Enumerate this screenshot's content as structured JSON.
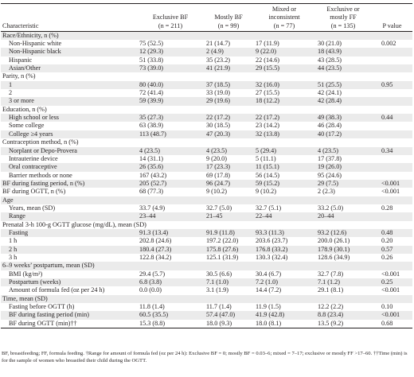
{
  "columns": [
    {
      "label": "Characteristic"
    },
    {
      "label": "Exclusive BF",
      "sub": "(n = 211)"
    },
    {
      "label": "Mostly BF",
      "sub": "(n = 99)"
    },
    {
      "label_l1": "Mixed or",
      "label_l2": "inconsistent",
      "sub": "(n = 77)"
    },
    {
      "label_l1": "Exclusive or",
      "label_l2": "mostly FF",
      "sub": "(n = 135)"
    },
    {
      "label": "P value"
    }
  ],
  "rows": [
    {
      "type": "section",
      "label": "Race/Ethnicity, n (%)"
    },
    {
      "type": "data",
      "label": "Non-Hispanic white",
      "v": [
        "75 (52.5)",
        "21 (14.7)",
        "17 (11.9)",
        "30 (21.0)"
      ],
      "p": "0.002"
    },
    {
      "type": "data",
      "label": "Non-Hispanic black",
      "v": [
        "12 (29.3)",
        "2 (4.9)",
        "9 (22.0)",
        "18 (43.9)"
      ],
      "p": ""
    },
    {
      "type": "data",
      "label": "Hispanic",
      "v": [
        "51 (33.8)",
        "35 (23.2)",
        "22 (14.6)",
        "43 (28.5)"
      ],
      "p": ""
    },
    {
      "type": "data",
      "label": "Asian/Other",
      "v": [
        "73 (39.0)",
        "41 (21.9)",
        "29 (15.5)",
        "44 (23.5)"
      ],
      "p": ""
    },
    {
      "type": "section",
      "label": "Parity, n (%)"
    },
    {
      "type": "data",
      "label": "1",
      "v": [
        "80 (40.0)",
        "37 (18.5)",
        "32 (16.0)",
        "51 (25.5)"
      ],
      "p": "0.95"
    },
    {
      "type": "data",
      "label": "2",
      "v": [
        "72 (41.4)",
        "33 (19.0)",
        "27 (15.5)",
        "42 (24.1)"
      ],
      "p": ""
    },
    {
      "type": "data",
      "label": "3 or more",
      "v": [
        "59 (39.9)",
        "29 (19.6)",
        "18 (12.2)",
        "42 (28.4)"
      ],
      "p": ""
    },
    {
      "type": "section",
      "label": "Education, n (%)"
    },
    {
      "type": "data",
      "label": "High school or less",
      "v": [
        "35 (27.3)",
        "22 (17.2)",
        "22 (17.2)",
        "49 (38.3)"
      ],
      "p": "0.44"
    },
    {
      "type": "data",
      "label": "Some college",
      "v": [
        "63 (38.9)",
        "30 (18.5)",
        "23 (14.2)",
        "46 (28.4)"
      ],
      "p": ""
    },
    {
      "type": "data",
      "label": "College ≥4 years",
      "v": [
        "113 (48.7)",
        "47 (20.3)",
        "32 (13.8)",
        "40 (17.2)"
      ],
      "p": ""
    },
    {
      "type": "section",
      "label": "Contraception method, n (%)"
    },
    {
      "type": "data",
      "label": "Norplant or Depo-Provera",
      "v": [
        "4 (23.5)",
        "4 (23.5)",
        "5 (29.4)",
        "4 (23.5)"
      ],
      "p": "0.34"
    },
    {
      "type": "data",
      "label": "Intrauterine device",
      "v": [
        "14 (31.1)",
        "9 (20.0)",
        "5 (11.1)",
        "17 (37.8)"
      ],
      "p": ""
    },
    {
      "type": "data",
      "label": "Oral contraceptive",
      "v": [
        "26 (35.6)",
        "17 (23.3)",
        "11 (15.1)",
        "19 (26.0)"
      ],
      "p": ""
    },
    {
      "type": "data",
      "label": "Barrier methods or none",
      "v": [
        "167 (43.2)",
        "69 (17.8)",
        "56 (14.5)",
        "95 (24.6)"
      ],
      "p": ""
    },
    {
      "type": "top",
      "label": "BF during fasting period, n (%)",
      "v": [
        "205 (52.7)",
        "96 (24.7)",
        "59 (15.2)",
        "29 (7.5)"
      ],
      "p": "<0.001"
    },
    {
      "type": "top",
      "label": "BF during OGTT, n (%)",
      "v": [
        "68 (77.3)",
        "9 (10.2)",
        "9 (10.2)",
        "2 (2.3)"
      ],
      "p": "<0.001"
    },
    {
      "type": "section",
      "label": "Age"
    },
    {
      "type": "data",
      "label": "Years, mean (SD)",
      "v": [
        "33.7 (4.9)",
        "32.7 (5.0)",
        "32.7 (5.1)",
        "33.2 (5.0)"
      ],
      "p": "0.28"
    },
    {
      "type": "data",
      "label": "Range",
      "v": [
        "23–44",
        "21–45",
        "22–44",
        "20–44"
      ],
      "p": ""
    },
    {
      "type": "section",
      "label": "Prenatal 3-h 100-g OGTT glucose (mg/dL), mean (SD)"
    },
    {
      "type": "data",
      "label": "Fasting",
      "v": [
        "91.3 (13.4)",
        "91.9 (11.8)",
        "93.3 (11.3)",
        "93.2 (12.6)"
      ],
      "p": "0.48"
    },
    {
      "type": "data",
      "label": "1 h",
      "v": [
        "202.8 (24.6)",
        "197.2 (22.0)",
        "203.6 (23.7)",
        "200.0 (26.1)"
      ],
      "p": "0.20"
    },
    {
      "type": "data",
      "label": "2 h",
      "v": [
        "180.4 (27.3)",
        "175.8 (27.6)",
        "176.8 (33.2)",
        "178.9 (30.1)"
      ],
      "p": "0.57"
    },
    {
      "type": "data",
      "label": "3 h",
      "v": [
        "122.8 (34.2)",
        "125.1 (31.9)",
        "130.3 (32.4)",
        "128.6 (34.9)"
      ],
      "p": "0.26"
    },
    {
      "type": "section",
      "label": "6–9 weeks’ postpartum, mean (SD)"
    },
    {
      "type": "data",
      "label": "BMI (kg/m²)",
      "v": [
        "29.4 (5.7)",
        "30.5 (6.6)",
        "30.4 (6.7)",
        "32.7 (7.8)"
      ],
      "p": "<0.001"
    },
    {
      "type": "data",
      "label": "Postpartum (weeks)",
      "v": [
        "6.8 (3.8)",
        "7.1 (1.0)",
        "7.2 (1.0)",
        "7.1 (1.2)"
      ],
      "p": "0.25"
    },
    {
      "type": "data",
      "label": "Amount of formula fed (oz per 24 h)",
      "v": [
        "0.0 (0.0)",
        "3.1 (1.9)",
        "14.4 (7.2)",
        "29.1 (8.1)"
      ],
      "p": "<0.001"
    },
    {
      "type": "section",
      "label": "Time, mean (SD)"
    },
    {
      "type": "data",
      "label": "Fasting before OGTT (h)",
      "v": [
        "11.8 (1.4)",
        "11.7 (1.4)",
        "11.9 (1.5)",
        "12.2 (2.2)"
      ],
      "p": "0.10"
    },
    {
      "type": "data",
      "label": "BF during fasting period (min)",
      "v": [
        "60.5 (35.5)",
        "57.4 (47.0)",
        "41.9 (42.8)",
        "8.8 (23.4)"
      ],
      "p": "<0.001"
    },
    {
      "type": "data",
      "label": "BF during OGTT (min)††",
      "v": [
        "15.3 (8.8)",
        "18.0 (9.3)",
        "18.0 (8.1)",
        "13.5 (9.2)"
      ],
      "p": "0.68"
    }
  ],
  "footnote": "BF, breastfeeding; FF, formula feeding. †Range for amount of formula fed (oz per 24 h): Exclusive BF = 0; mostly BF = 0.03–6; mixed = 7–17; exclusive or mostly FF >17–60. ††Time (min) is for the sample of women who breastfed their child during the OGTT."
}
